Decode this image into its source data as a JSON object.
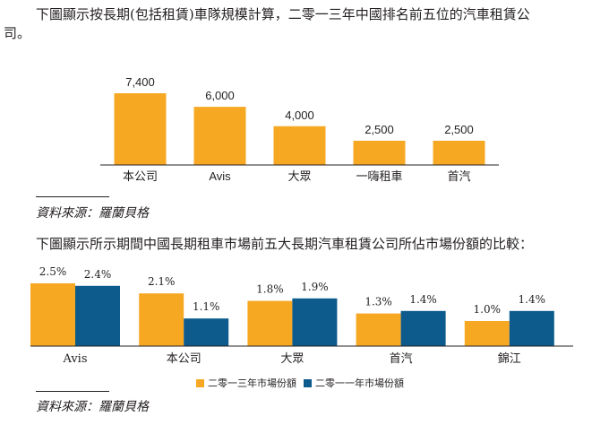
{
  "intro1": {
    "line1": "下圖顯示按長期(包括租賃)車隊規模計算，二零一三年中國排名前五位的汽車租賃公",
    "line2": "司。"
  },
  "intro2": "下圖顯示所示期間中國長期租車市場前五大長期汽車租賃公司所佔市場份額的比較：",
  "source1": "資料來源：羅蘭貝格",
  "source2": "資料來源：羅蘭貝格",
  "colors": {
    "orange": "#f7a823",
    "blue": "#0d5b8c",
    "axis": "#231f20"
  },
  "chart_data": [
    {
      "type": "bar",
      "categories": [
        "本公司",
        "Avis",
        "大眾",
        "一嗨租車",
        "首汽"
      ],
      "values": [
        7400,
        6000,
        4000,
        2500,
        2500
      ],
      "value_labels": [
        "7,400",
        "6,000",
        "4,000",
        "2,500",
        "2,500"
      ],
      "ylim": [
        0,
        8000
      ],
      "grid": false
    },
    {
      "type": "bar",
      "categories": [
        "Avis",
        "本公司",
        "大眾",
        "首汽",
        "錦江"
      ],
      "series": [
        {
          "name": "二零一三年市場份額",
          "values": [
            2.5,
            2.1,
            1.8,
            1.3,
            1.0
          ],
          "value_labels": [
            "2.5%",
            "2.1%",
            "1.8%",
            "1.3%",
            "1.0%"
          ]
        },
        {
          "name": "二零一一年市場份額",
          "values": [
            2.4,
            1.1,
            1.9,
            1.4,
            1.4
          ],
          "value_labels": [
            "2.4%",
            "1.1%",
            "1.9%",
            "1.4%",
            "1.4%"
          ]
        }
      ],
      "ylim": [
        0,
        2.8
      ],
      "legend": "bottom",
      "grid": false
    }
  ]
}
